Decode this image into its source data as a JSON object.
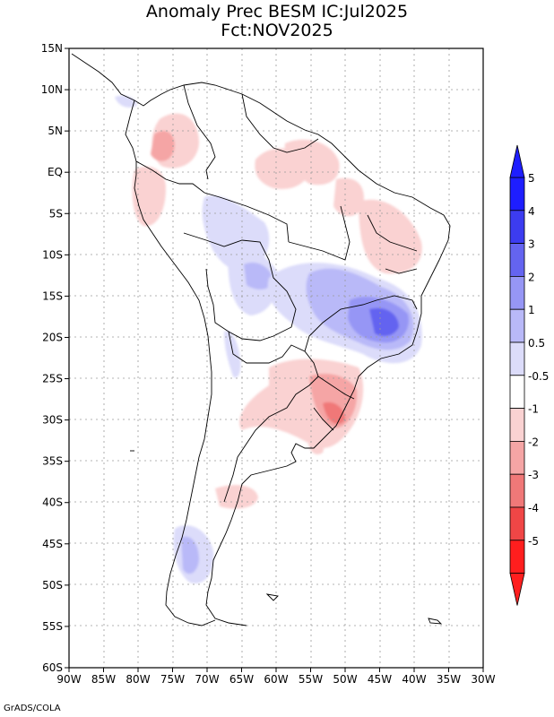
{
  "title": {
    "line1": "Anomaly Prec BESM IC:Jul2025",
    "line2": "Fct:NOV2025"
  },
  "axes": {
    "lat_labels": [
      "15N",
      "10N",
      "5N",
      "EQ",
      "5S",
      "10S",
      "15S",
      "20S",
      "25S",
      "30S",
      "35S",
      "40S",
      "45S",
      "50S",
      "55S",
      "60S"
    ],
    "lon_labels": [
      "90W",
      "85W",
      "80W",
      "75W",
      "70W",
      "65W",
      "60W",
      "55W",
      "50W",
      "45W",
      "40W",
      "35W",
      "30W"
    ],
    "lat_range": [
      -60,
      15
    ],
    "lon_range": [
      -90,
      -30
    ]
  },
  "colorbar": {
    "levels": [
      "5",
      "4",
      "3",
      "2",
      "1",
      "0.5",
      "-0.5",
      "-1",
      "-2",
      "-3",
      "-4",
      "-5"
    ],
    "colors": [
      "#1e1eff",
      "#3c3cf0",
      "#6464f0",
      "#9696f5",
      "#b9b9f8",
      "#dcdcfa",
      "#ffffff",
      "#fad2d2",
      "#f5a5a5",
      "#f07878",
      "#f04646",
      "#ff1e1e"
    ]
  },
  "credit": "GrADS/COLA"
}
